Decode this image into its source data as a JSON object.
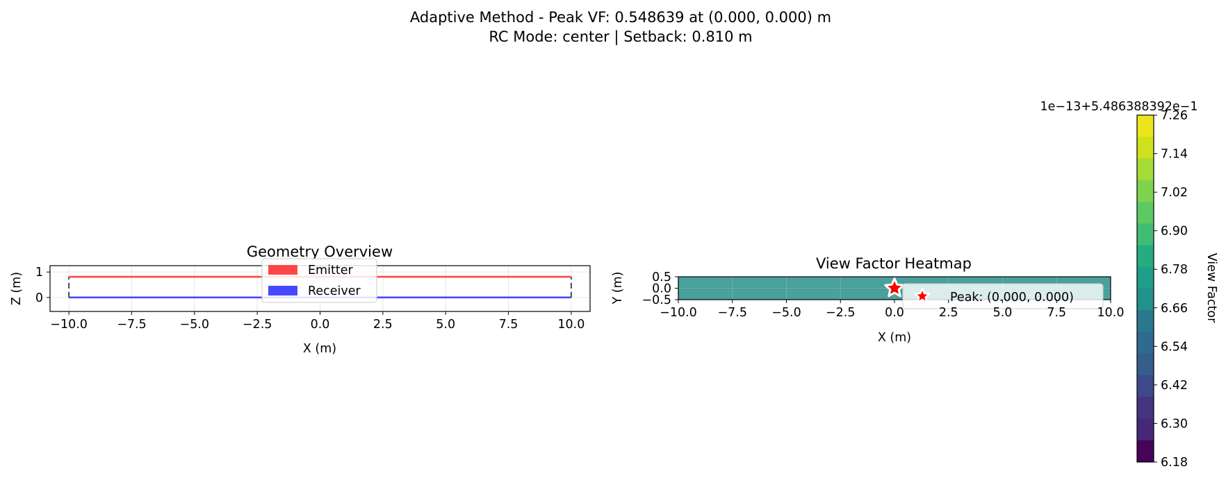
{
  "figure": {
    "suptitle_line1": "Adaptive Method - Peak VF: 0.548639 at (0.000, 0.000) m",
    "suptitle_line2": "RC Mode: center | Setback: 0.810 m"
  },
  "chart_data": [
    {
      "type": "line",
      "title": "Geometry Overview",
      "xlabel": "X (m)",
      "ylabel": "Z (m)",
      "xlim": [
        -10.75,
        10.75
      ],
      "ylim": [
        -0.55,
        1.25
      ],
      "xticks": [
        "−10.0",
        "−7.5",
        "−5.0",
        "−2.5",
        "0.0",
        "2.5",
        "5.0",
        "7.5",
        "10.0"
      ],
      "xtick_values": [
        -10,
        -7.5,
        -5,
        -2.5,
        0,
        2.5,
        5,
        7.5,
        10
      ],
      "yticks": [
        "0",
        "1"
      ],
      "ytick_values": [
        0,
        1
      ],
      "grid": true,
      "legend_placement": "upper-center",
      "series": [
        {
          "name": "Emitter",
          "color": "#ff4747",
          "x": [
            -10,
            10
          ],
          "y": [
            0.81,
            0.81
          ]
        },
        {
          "name": "Receiver",
          "color": "#4747ff",
          "x": [
            -10,
            10
          ],
          "y": [
            0,
            0
          ]
        }
      ],
      "connectors": {
        "style": "dashed",
        "color": "#555555",
        "x": [
          -10,
          10
        ],
        "y": [
          0,
          0.81
        ]
      }
    },
    {
      "type": "heatmap",
      "title": "View Factor Heatmap",
      "xlabel": "X (m)",
      "ylabel": "Y (m)",
      "xlim": [
        -10,
        10
      ],
      "ylim": [
        -0.5,
        0.5
      ],
      "xticks": [
        "−10.0",
        "−7.5",
        "−5.0",
        "−2.5",
        "0.0",
        "2.5",
        "5.0",
        "7.5",
        "10.0"
      ],
      "xtick_values": [
        -10,
        -7.5,
        -5,
        -2.5,
        0,
        2.5,
        5,
        7.5,
        10
      ],
      "yticks": [
        "0.5",
        "0.0",
        "−0.5"
      ],
      "ytick_values": [
        0.5,
        0,
        -0.5
      ],
      "fill_color": "#4aa09a",
      "peak": {
        "x": 0,
        "y": 0,
        "legend": "Peak: (0.000, 0.000)"
      },
      "legend_placement": "lower-right",
      "colorbar": {
        "label": "View Factor",
        "offset_text": "1e−13+5.486388392e−1",
        "tick_labels": [
          "7.26",
          "7.14",
          "7.02",
          "6.90",
          "6.78",
          "6.66",
          "6.54",
          "6.42",
          "6.30",
          "6.18"
        ],
        "colors": [
          "#ede51b",
          "#cfe11c",
          "#a5db36",
          "#7fd34e",
          "#5ec962",
          "#40bd72",
          "#25ac82",
          "#1f9e89",
          "#21918c",
          "#2a788e",
          "#306a8e",
          "#355e8d",
          "#3e4989",
          "#453581",
          "#472878",
          "#450457"
        ]
      }
    }
  ]
}
